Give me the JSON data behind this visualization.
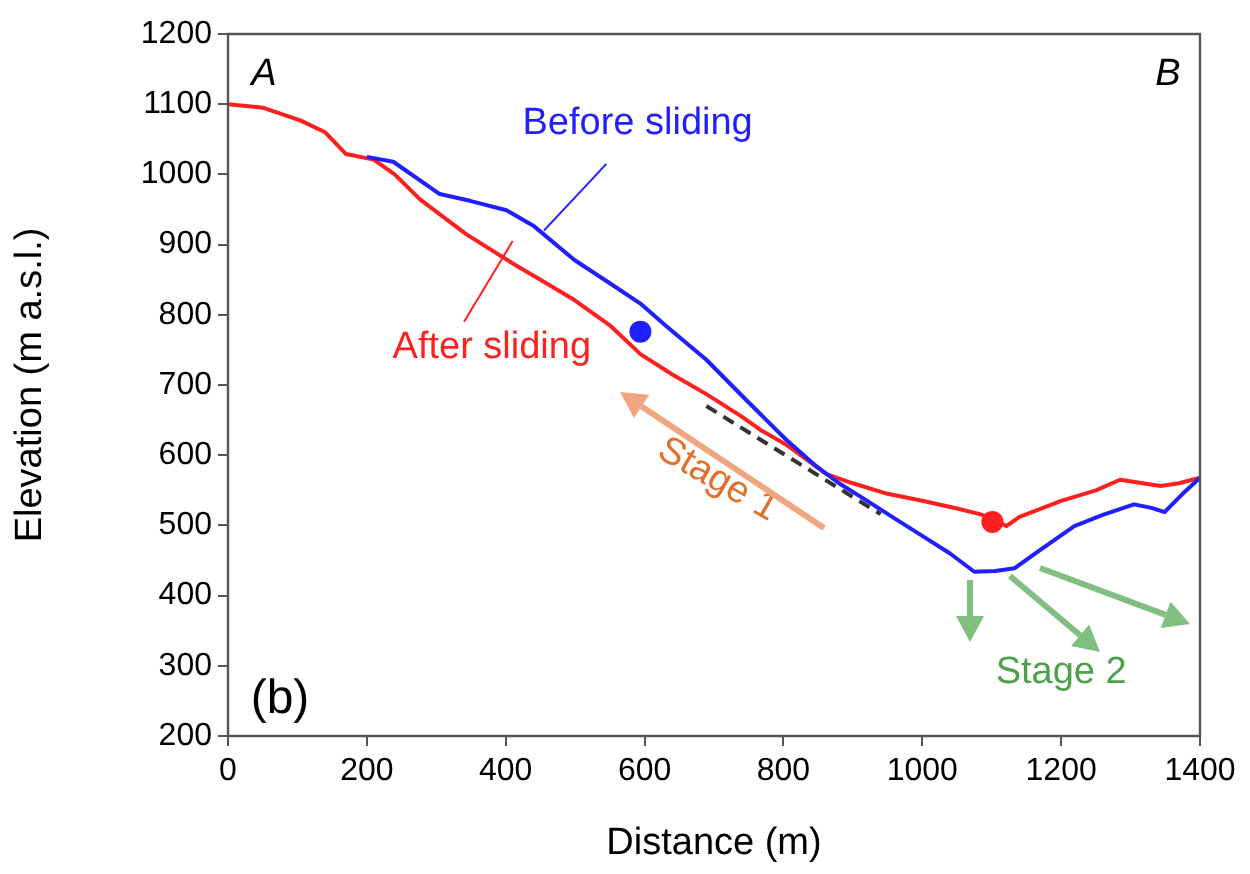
{
  "chart_data": {
    "type": "line",
    "xlabel": "Distance (m)",
    "ylabel": "Elevation (m a.s.l.)",
    "xlim": [
      0,
      1400
    ],
    "ylim": [
      200,
      1200
    ],
    "xticks": [
      0,
      200,
      400,
      600,
      800,
      1000,
      1200,
      1400
    ],
    "yticks": [
      200,
      300,
      400,
      500,
      600,
      700,
      800,
      900,
      1000,
      1100,
      1200
    ],
    "grid": false,
    "marker": "none",
    "annotations": [
      "A",
      "B",
      "(b)",
      "Stage 1",
      {
        "text": "Stage 2",
        "x": 1100,
        "y": 437
      }
    ],
    "series": [
      {
        "name": "Before sliding",
        "color": "#1f1fff",
        "x": [
          200,
          238,
          305,
          350,
          401,
          441,
          499,
          556,
          594,
          631,
          689,
          746,
          804,
          844,
          880,
          919,
          960,
          1000,
          1040,
          1075,
          1105,
          1133,
          1170,
          1219,
          1260,
          1305,
          1330,
          1349,
          1375,
          1400
        ],
        "values": [
          1025,
          1018,
          972,
          962,
          949,
          926,
          878,
          841,
          816,
          784,
          736,
          679,
          622,
          587,
          560,
          536,
          510,
          485,
          460,
          434,
          435,
          439,
          465,
          499,
          515,
          530,
          525,
          519,
          545,
          568
        ]
      },
      {
        "name": "After sliding",
        "color": "#ff1f1f",
        "x": [
          0,
          50,
          104,
          140,
          170,
          210,
          240,
          277,
          343,
          412,
          450,
          499,
          550,
          594,
          640,
          689,
          740,
          767,
          804,
          862,
          900,
          950,
          1000,
          1050,
          1083,
          1100,
          1121,
          1140,
          1200,
          1250,
          1285,
          1343,
          1370,
          1400
        ],
        "values": [
          1100,
          1095,
          1077,
          1060,
          1029,
          1021,
          1000,
          964,
          915,
          872,
          850,
          821,
          785,
          744,
          715,
          687,
          655,
          636,
          615,
          573,
          560,
          545,
          535,
          524,
          516,
          510,
          499,
          512,
          535,
          550,
          565,
          556,
          560,
          568
        ]
      },
      {
        "color": "#333333",
        "line_style": "dashed",
        "x": [
          689,
          940
        ],
        "values": [
          670,
          516
        ]
      },
      {
        "type": "scatter",
        "marker": "circle",
        "color": "#1f1fff",
        "x": [
          594
        ],
        "values": [
          776
        ]
      },
      {
        "type": "scatter",
        "marker": "circle",
        "color": "#ff1f1f",
        "x": [
          1101
        ],
        "values": [
          505
        ]
      }
    ]
  }
}
